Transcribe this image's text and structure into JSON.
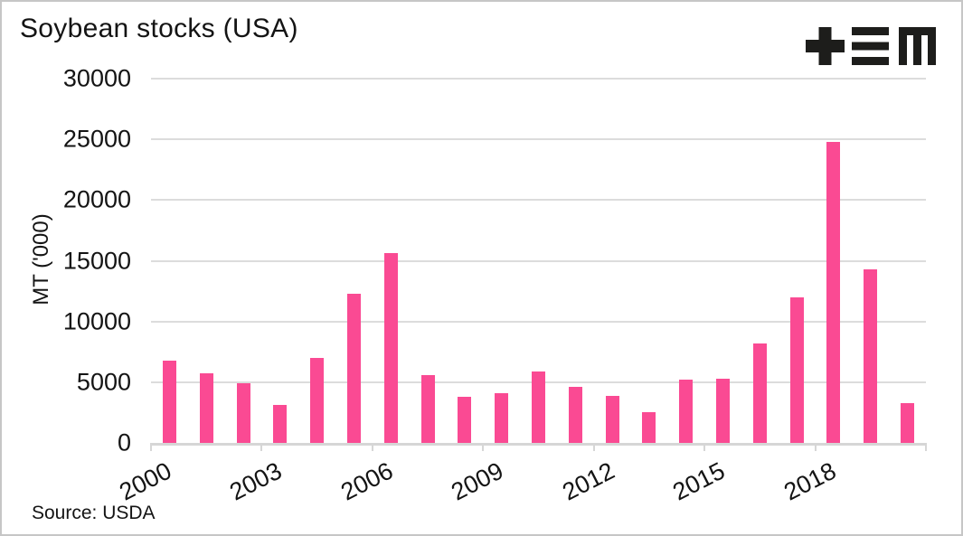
{
  "title": "Soybean stocks (USA)",
  "source_label": "Source: USDA",
  "logo": {
    "name": "tem-logo",
    "glyphs": [
      "plus",
      "triple-bar",
      "m"
    ],
    "color": "#1d1d1b"
  },
  "colors": {
    "bar": "#fa4a93",
    "gridline": "#dcdcdc",
    "axis": "#d6d6d6",
    "text": "#141414",
    "border": "#c6c6c6",
    "background": "#ffffff"
  },
  "chart_data": {
    "type": "bar",
    "title": "Soybean stocks (USA)",
    "xlabel": "",
    "ylabel": "MT ('000)",
    "source": "Source: USDA",
    "x": [
      2000,
      2001,
      2002,
      2003,
      2004,
      2005,
      2006,
      2007,
      2008,
      2009,
      2010,
      2011,
      2012,
      2013,
      2014,
      2015,
      2016,
      2017,
      2018,
      2019,
      2020
    ],
    "values": [
      6800,
      5700,
      4900,
      3100,
      7000,
      12300,
      15600,
      5600,
      3800,
      4100,
      5900,
      4600,
      3900,
      2500,
      5200,
      5300,
      8200,
      12000,
      24800,
      14300,
      3300
    ],
    "ylim": [
      0,
      30000
    ],
    "yticks": [
      0,
      5000,
      10000,
      15000,
      20000,
      25000,
      30000
    ],
    "xlim": [
      2000,
      2021
    ],
    "xticks_labeled": [
      2000,
      2003,
      2006,
      2009,
      2012,
      2015,
      2018
    ],
    "xticks_all": [
      2000,
      2003,
      2006,
      2009,
      2012,
      2015,
      2018,
      2021
    ],
    "grid": "horizontal-only",
    "legend": "none",
    "bar_color": "#fa4a93",
    "bars_offset": "centered on mid-year (year + 0.5)"
  }
}
